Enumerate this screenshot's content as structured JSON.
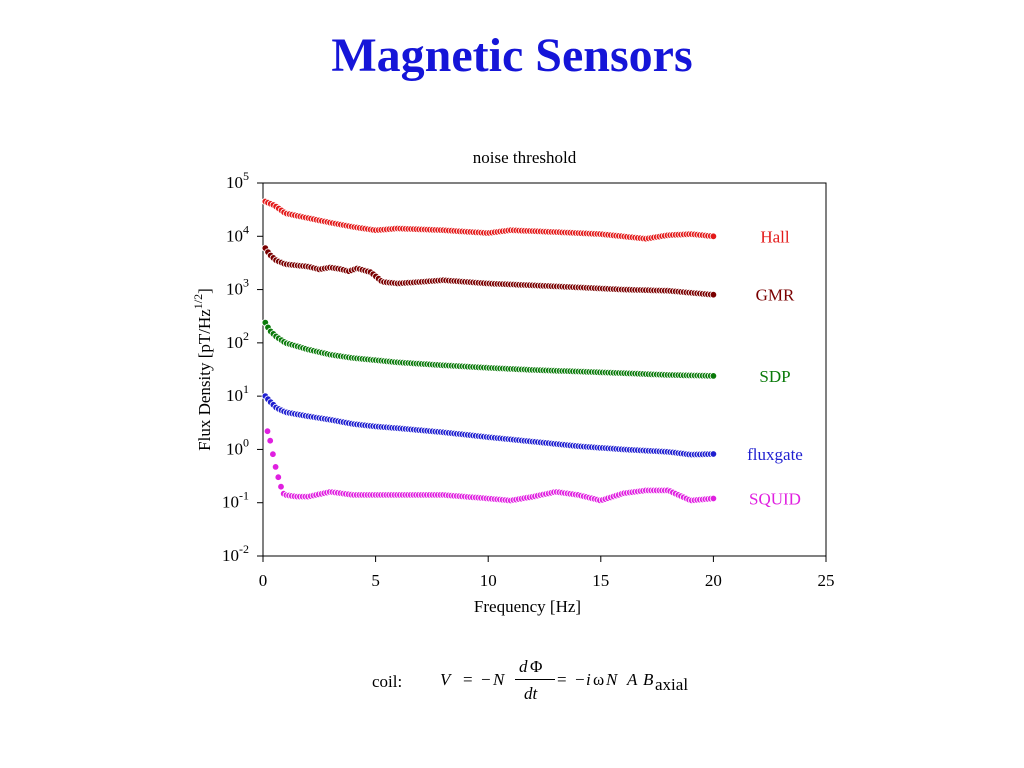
{
  "slide": {
    "title": "Magnetic Sensors"
  },
  "colors": {
    "title": "#1515d8",
    "Hall": "#e31a1a",
    "GMR": "#7a0000",
    "SDP": "#0a7a0a",
    "fluxgate": "#1f1fd0",
    "SQUID": "#e020e0"
  },
  "chart_data": {
    "type": "scatter",
    "title": "noise threshold",
    "xlabel": "Frequency [Hz]",
    "ylabel_main": "Flux Density [pT/Hz",
    "ylabel_sup": "1/2",
    "ylabel_end": "]",
    "xlim": [
      0,
      25
    ],
    "ylim": [
      0.01,
      100000
    ],
    "yscale": "log",
    "grid": false,
    "legend": "labels-right",
    "xticks": [
      "0",
      "5",
      "10",
      "15",
      "20",
      "25"
    ],
    "yticks": [
      {
        "base": "10",
        "exp": "5"
      },
      {
        "base": "10",
        "exp": "4"
      },
      {
        "base": "10",
        "exp": "3"
      },
      {
        "base": "10",
        "exp": "2"
      },
      {
        "base": "10",
        "exp": "1"
      },
      {
        "base": "10",
        "exp": "0"
      },
      {
        "base": "10",
        "exp": "-1"
      },
      {
        "base": "10",
        "exp": "-2"
      }
    ],
    "series": [
      {
        "name": "Hall",
        "x": [
          0.1,
          0.5,
          1,
          2,
          3,
          4,
          5,
          6,
          8,
          10,
          11,
          13,
          15,
          17,
          18,
          19,
          20
        ],
        "y": [
          45000,
          38000,
          27000,
          22000,
          18000,
          15000,
          13000,
          14000,
          13000,
          11500,
          13000,
          12000,
          11000,
          9000,
          10500,
          11000,
          10000
        ]
      },
      {
        "name": "GMR",
        "x": [
          0.1,
          0.3,
          0.6,
          1,
          2,
          2.5,
          3,
          3.5,
          3.8,
          4.2,
          4.8,
          5.3,
          6,
          8,
          10,
          12,
          14,
          16,
          18,
          20
        ],
        "y": [
          6000,
          4500,
          3500,
          3000,
          2700,
          2400,
          2600,
          2400,
          2200,
          2500,
          2100,
          1400,
          1300,
          1500,
          1300,
          1200,
          1100,
          1000,
          950,
          800
        ]
      },
      {
        "name": "SDP",
        "x": [
          0.1,
          0.3,
          0.6,
          1,
          2,
          3,
          4,
          6,
          8,
          10,
          12,
          14,
          16,
          18,
          20
        ],
        "y": [
          240,
          170,
          130,
          100,
          75,
          60,
          52,
          43,
          38,
          34,
          31,
          29,
          27,
          25,
          24
        ]
      },
      {
        "name": "fluxgate",
        "x": [
          0.1,
          0.3,
          0.6,
          1,
          2,
          3,
          4,
          5,
          6,
          8,
          10,
          12,
          14,
          16,
          18,
          19,
          20
        ],
        "y": [
          10,
          8,
          6,
          5,
          4.2,
          3.6,
          3,
          2.7,
          2.5,
          2.1,
          1.7,
          1.4,
          1.15,
          1.0,
          0.9,
          0.8,
          0.82
        ]
      },
      {
        "name": "SQUID",
        "x": [
          0.2,
          0.3,
          0.4,
          0.5,
          0.6,
          0.7,
          0.8,
          0.9,
          1.0,
          1.5,
          2,
          3,
          4,
          6,
          8,
          10,
          11,
          12,
          13,
          14,
          15,
          16,
          17,
          18,
          19,
          20
        ],
        "y": [
          2.2,
          1.6,
          1.0,
          0.6,
          0.4,
          0.28,
          0.2,
          0.15,
          0.14,
          0.13,
          0.13,
          0.16,
          0.14,
          0.14,
          0.14,
          0.12,
          0.11,
          0.13,
          0.16,
          0.14,
          0.11,
          0.15,
          0.17,
          0.17,
          0.11,
          0.12
        ]
      }
    ]
  },
  "formula": {
    "label": "coil:",
    "V": "V",
    "eq1": "=",
    "minus1": "−",
    "N": "N",
    "num_d": "d",
    "num_phi": "Φ",
    "den": "dt",
    "eq2": "=",
    "minus2": "−",
    "i": "i",
    "omega": "ω",
    "N2": "N",
    "A": "A",
    "B": "B",
    "sub": "axial"
  }
}
